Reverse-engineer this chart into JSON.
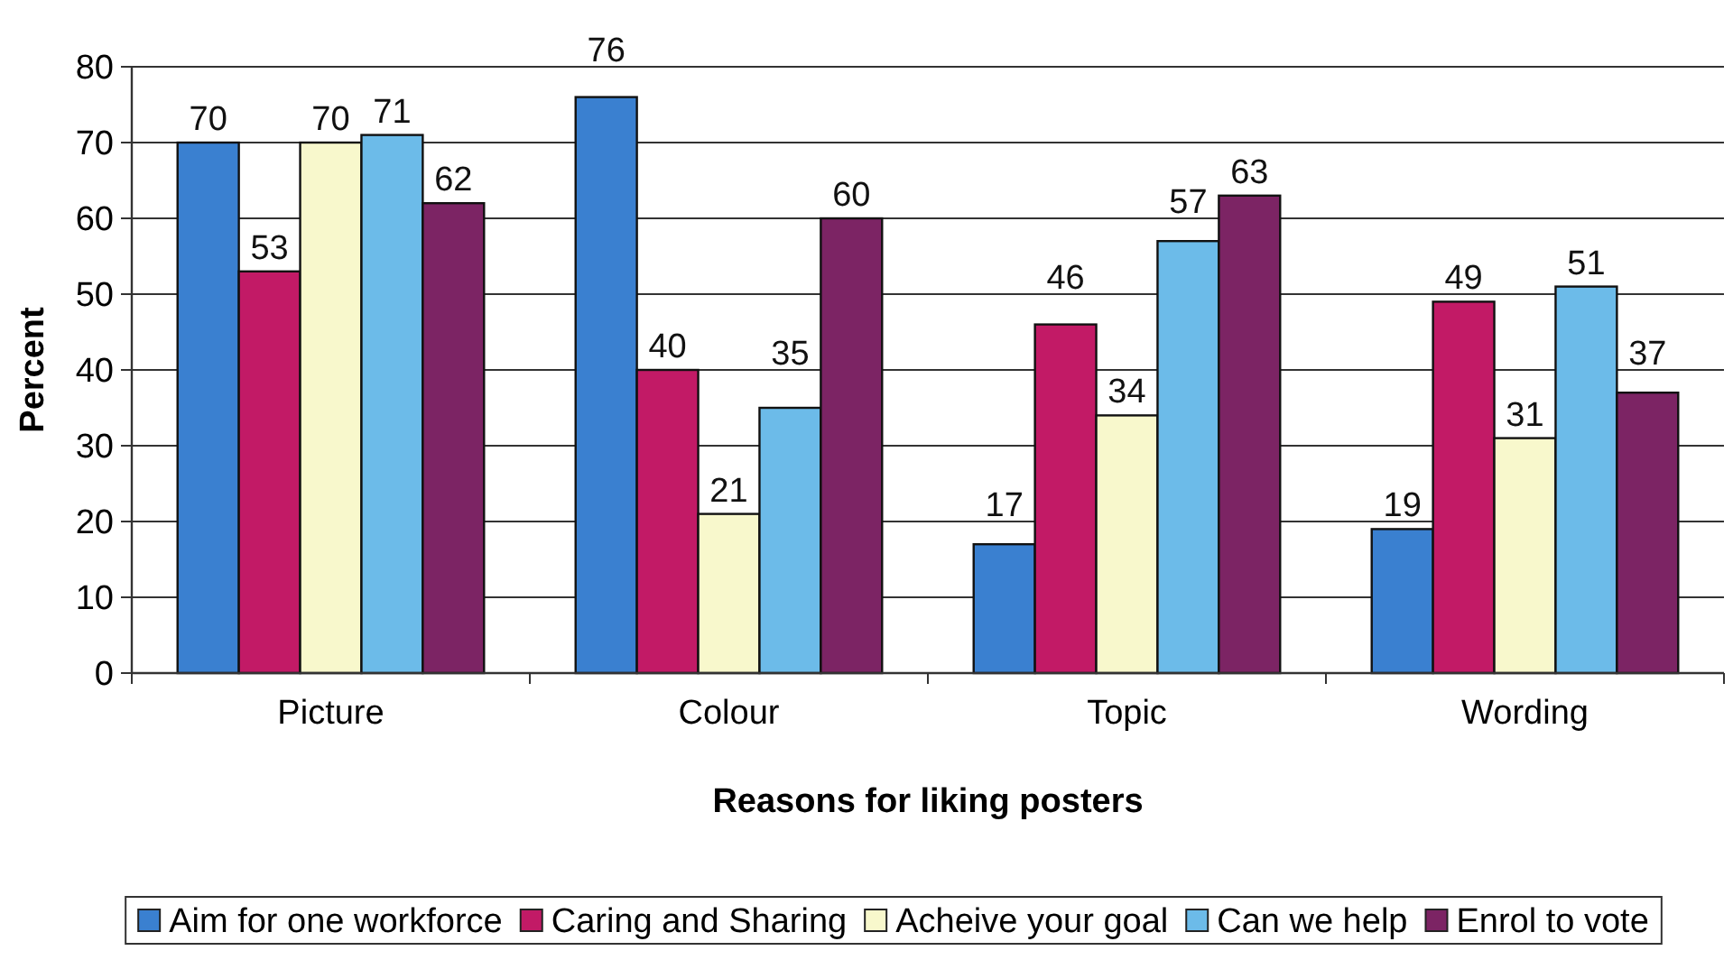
{
  "chart_data": {
    "type": "bar",
    "xlabel": "Reasons for liking posters",
    "ylabel": "Percent",
    "categories": [
      "Picture",
      "Colour",
      "Topic",
      "Wording"
    ],
    "series": [
      {
        "name": "Aim for one workforce",
        "color": "#3a80d0",
        "values": [
          70,
          76,
          17,
          19
        ]
      },
      {
        "name": "Caring and Sharing",
        "color": "#c21a66",
        "values": [
          53,
          40,
          46,
          49
        ]
      },
      {
        "name": "Acheive your goal",
        "color": "#f8f8cc",
        "values": [
          70,
          21,
          34,
          31
        ]
      },
      {
        "name": "Can we help",
        "color": "#6cbbe9",
        "values": [
          71,
          35,
          57,
          51
        ]
      },
      {
        "name": "Enrol to vote",
        "color": "#7c2464",
        "values": [
          62,
          60,
          63,
          37
        ]
      }
    ],
    "ylim": [
      0,
      80
    ],
    "yticks": [
      0,
      10,
      20,
      30,
      40,
      50,
      60,
      70,
      80
    ],
    "grid": "y",
    "legend": "bottom",
    "data_labels": true
  }
}
